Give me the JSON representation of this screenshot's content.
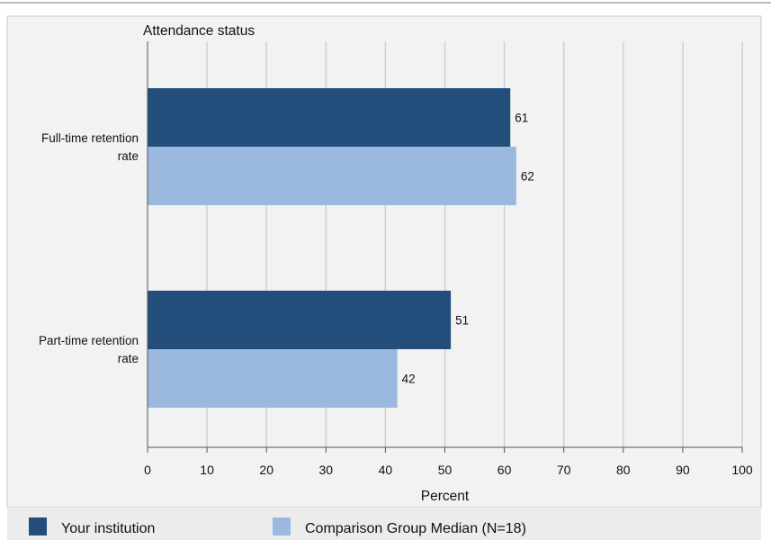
{
  "chart_data": {
    "type": "bar",
    "orientation": "horizontal",
    "title": "Attendance status",
    "xlabel": "Percent",
    "xlim": [
      0,
      100
    ],
    "xticks": [
      0,
      10,
      20,
      30,
      40,
      50,
      60,
      70,
      80,
      90,
      100
    ],
    "grid": true,
    "legend_position": "bottom",
    "categories": [
      [
        "Full-time retention",
        "rate"
      ],
      [
        "Part-time retention",
        "rate"
      ]
    ],
    "series": [
      {
        "name": "Your institution",
        "color": "#234e7c",
        "values": [
          61,
          51
        ]
      },
      {
        "name": "Comparison Group Median (N=18)",
        "color": "#9bb9df",
        "values": [
          62,
          42
        ]
      }
    ]
  }
}
